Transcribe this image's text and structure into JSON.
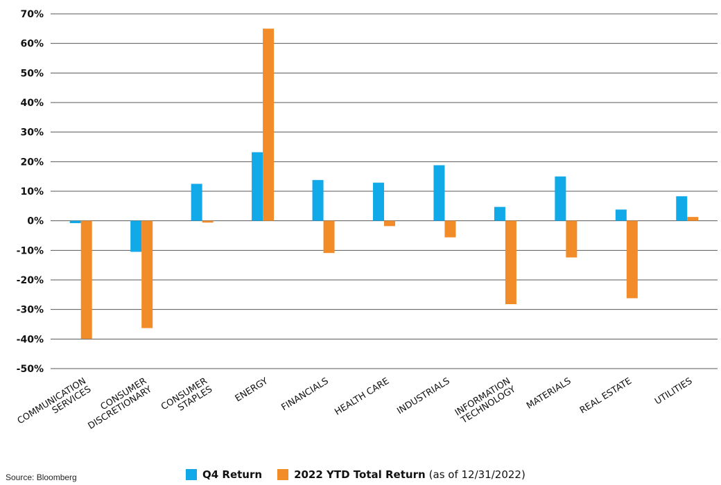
{
  "chart_data": {
    "type": "bar",
    "categories": [
      [
        "COMMUNICATION",
        "SERVICES"
      ],
      [
        "CONSUMER",
        "DISCRETIONARY"
      ],
      [
        "CONSUMER",
        "STAPLES"
      ],
      [
        "ENERGY"
      ],
      [
        "FINANCIALS"
      ],
      [
        "HEALTH CARE"
      ],
      [
        "INDUSTRIALS"
      ],
      [
        "INFORMATION",
        "TECHNOLOGY"
      ],
      [
        "MATERIALS"
      ],
      [
        "REAL ESTATE"
      ],
      [
        "UTILITIES"
      ]
    ],
    "series": [
      {
        "name": "Q4 Return",
        "color": "#12a9e8",
        "values": [
          -0.8,
          -10.5,
          12.5,
          23.2,
          13.8,
          12.9,
          18.8,
          4.7,
          15.0,
          3.8,
          8.3
        ]
      },
      {
        "name": "2022 YTD Total Return",
        "color": "#f28c28",
        "values": [
          -39.9,
          -36.3,
          -0.6,
          65.0,
          -10.9,
          -1.8,
          -5.6,
          -28.2,
          -12.4,
          -26.2,
          1.3
        ]
      }
    ],
    "ylim": [
      -50,
      70
    ],
    "yticks": [
      70,
      60,
      50,
      40,
      30,
      20,
      10,
      0,
      -10,
      -20,
      -30,
      -40,
      -50
    ],
    "ytick_labels": [
      "70%",
      "60%",
      "50%",
      "40%",
      "30%",
      "20%",
      "10%",
      "0%",
      "-10%",
      "-20%",
      "-30%",
      "-40%",
      "-50%"
    ],
    "grid": true,
    "legend_position": "bottom"
  },
  "legend": {
    "q4_label": "Q4 Return",
    "ytd_label": "2022 YTD Total Return",
    "ytd_note": "(as of 12/31/2022)"
  },
  "source": "Source: Bloomberg"
}
